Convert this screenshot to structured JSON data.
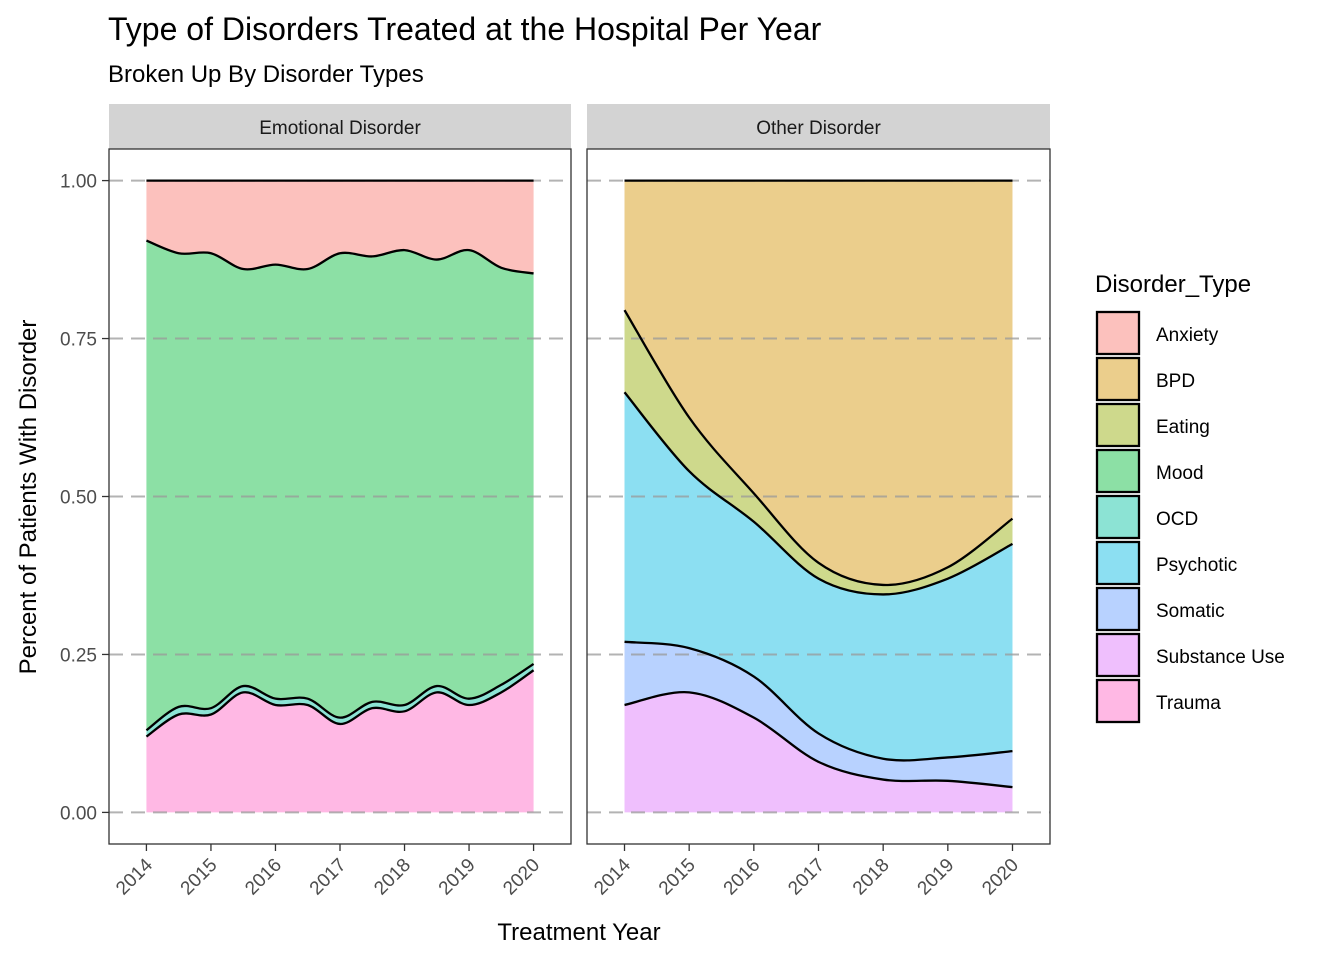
{
  "chart_data": {
    "type": "area",
    "subtype": "stacked-proportion",
    "title": "Type of Disorders Treated at the Hospital Per Year",
    "subtitle": "Broken Up By Disorder Types",
    "xlabel": "Treatment Year",
    "ylabel": "Percent of Patients With Disorder",
    "x": [
      2014,
      2015,
      2016,
      2017,
      2018,
      2019,
      2020
    ],
    "x_tick_labels": [
      "2014",
      "2015",
      "2016",
      "2017",
      "2018",
      "2019",
      "2020"
    ],
    "xlim": [
      2013.42,
      2020.58
    ],
    "ylim": [
      -0.05,
      1.05
    ],
    "y_ticks": [
      0,
      0.25,
      0.5,
      0.75,
      1.0
    ],
    "y_tick_labels": [
      "0.00",
      "0.25",
      "0.50",
      "0.75",
      "1.00"
    ],
    "grid": "dashed-horizontal-major",
    "legend_title": "Disorder_Type",
    "legend_position": "right",
    "legend": [
      {
        "name": "Anxiety",
        "color": "#F8766D"
      },
      {
        "name": "BPD",
        "color": "#D39200"
      },
      {
        "name": "Eating",
        "color": "#93AA00"
      },
      {
        "name": "Mood",
        "color": "#00BA38"
      },
      {
        "name": "OCD",
        "color": "#00C19F"
      },
      {
        "name": "Psychotic",
        "color": "#00B9E3"
      },
      {
        "name": "Somatic",
        "color": "#619CFF"
      },
      {
        "name": "Substance Use",
        "color": "#DB72FB"
      },
      {
        "name": "Trauma",
        "color": "#FF61C3"
      }
    ],
    "facets": [
      {
        "strip": "Emotional Disorder",
        "x": [
          2014,
          2014.5,
          2015,
          2015.5,
          2016,
          2016.5,
          2017,
          2017.5,
          2018,
          2018.5,
          2019,
          2019.5,
          2020
        ],
        "series": [
          {
            "name": "Trauma",
            "color": "#FF61C3",
            "values": [
              0.12,
              0.155,
              0.155,
              0.19,
              0.17,
              0.17,
              0.14,
              0.165,
              0.16,
              0.19,
              0.17,
              0.19,
              0.225
            ]
          },
          {
            "name": "OCD",
            "color": "#00C19F",
            "values": [
              0.01,
              0.012,
              0.01,
              0.01,
              0.01,
              0.01,
              0.01,
              0.01,
              0.01,
              0.01,
              0.01,
              0.012,
              0.01
            ]
          },
          {
            "name": "Mood",
            "color": "#00BA38",
            "values": [
              0.775,
              0.718,
              0.72,
              0.66,
              0.687,
              0.68,
              0.735,
              0.705,
              0.72,
              0.675,
              0.71,
              0.66,
              0.618
            ]
          },
          {
            "name": "Anxiety",
            "color": "#F8766D",
            "values": [
              0.095,
              0.115,
              0.115,
              0.14,
              0.133,
              0.14,
              0.115,
              0.12,
              0.11,
              0.125,
              0.11,
              0.138,
              0.147
            ]
          }
        ]
      },
      {
        "strip": "Other Disorder",
        "x": [
          2014,
          2015,
          2016,
          2017,
          2018,
          2019,
          2020
        ],
        "series": [
          {
            "name": "Substance Use",
            "color": "#DB72FB",
            "values": [
              0.17,
              0.19,
              0.15,
              0.08,
              0.052,
              0.05,
              0.04
            ]
          },
          {
            "name": "Somatic",
            "color": "#619CFF",
            "values": [
              0.1,
              0.07,
              0.065,
              0.045,
              0.033,
              0.037,
              0.057
            ]
          },
          {
            "name": "Psychotic",
            "color": "#00B9E3",
            "values": [
              0.395,
              0.28,
              0.245,
              0.245,
              0.26,
              0.283,
              0.328
            ]
          },
          {
            "name": "Eating",
            "color": "#93AA00",
            "values": [
              0.13,
              0.085,
              0.045,
              0.025,
              0.015,
              0.018,
              0.04
            ]
          },
          {
            "name": "BPD",
            "color": "#D39200",
            "values": [
              0.205,
              0.375,
              0.495,
              0.605,
              0.64,
              0.612,
              0.535
            ]
          }
        ]
      }
    ]
  }
}
